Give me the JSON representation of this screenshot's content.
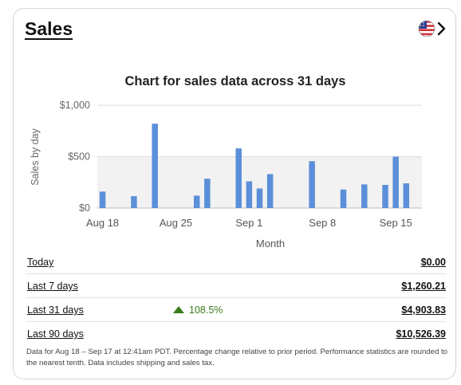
{
  "header": {
    "title": "Sales",
    "region_icon": "us-flag-icon",
    "chevron_icon": "chevron-right-icon"
  },
  "chart_data": {
    "type": "bar",
    "title": "Chart for sales data across 31 days",
    "xlabel": "Month",
    "ylabel": "Sales by day",
    "ylim": [
      0,
      1000
    ],
    "yticks": [
      {
        "value": 0,
        "label": "$0"
      },
      {
        "value": 500,
        "label": "$500"
      },
      {
        "value": 1000,
        "label": "$1,000"
      }
    ],
    "xticks": [
      {
        "day": 0,
        "label": "Aug 18"
      },
      {
        "day": 7,
        "label": "Aug 25"
      },
      {
        "day": 14,
        "label": "Sep 1"
      },
      {
        "day": 21,
        "label": "Sep 8"
      },
      {
        "day": 28,
        "label": "Sep 15"
      }
    ],
    "bar_color": "#5b8fd9",
    "band_color": "#f2f2f2",
    "values": [
      160,
      0,
      0,
      115,
      0,
      820,
      0,
      0,
      0,
      120,
      285,
      0,
      0,
      580,
      260,
      190,
      330,
      0,
      0,
      0,
      455,
      0,
      0,
      180,
      0,
      230,
      0,
      225,
      500,
      240,
      0
    ]
  },
  "stats": [
    {
      "label": "Today",
      "change": "",
      "value": "$0.00"
    },
    {
      "label": "Last 7 days",
      "change": "",
      "value": "$1,260.21"
    },
    {
      "label": "Last 31 days",
      "change": "108.5%",
      "value": "$4,903.83"
    },
    {
      "label": "Last 90 days",
      "change": "",
      "value": "$10,526.39"
    }
  ],
  "change_color": "#3b7a1a",
  "footnote": "Data for Aug 18 – Sep 17 at 12:41am PDT. Percentage change relative to prior period. Performance statistics are rounded to the nearest tenth. Data includes shipping and sales tax."
}
